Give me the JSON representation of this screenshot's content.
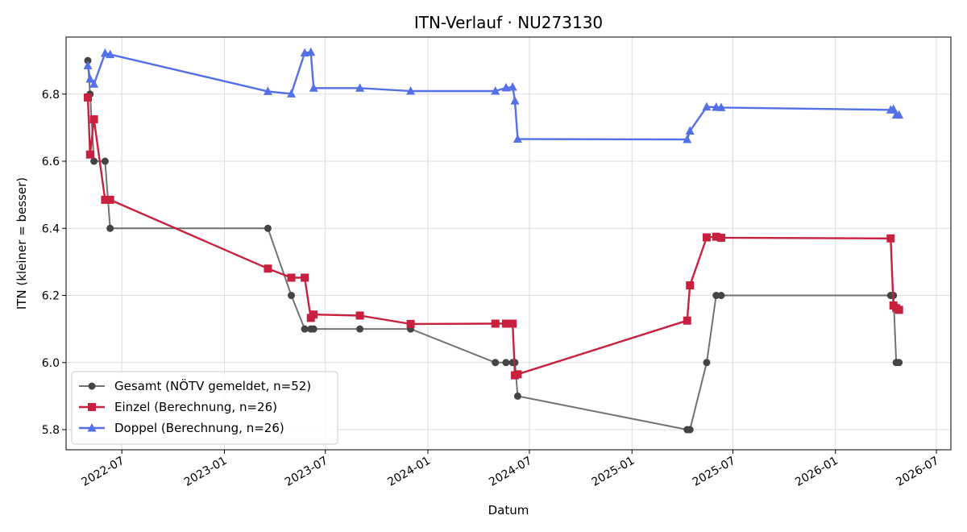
{
  "chart_data": {
    "type": "line",
    "title": "ITN-Verlauf · NU273130",
    "xlabel": "Datum",
    "ylabel": "ITN  (kleiner = besser)",
    "xlim": [
      "2022-03-23",
      "2026-07-27"
    ],
    "ylim": [
      5.74,
      6.97
    ],
    "x_ticks": [
      "2022-07",
      "2023-01",
      "2023-07",
      "2024-01",
      "2024-07",
      "2025-01",
      "2025-07",
      "2026-01",
      "2026-07"
    ],
    "y_ticks": [
      5.8,
      6.0,
      6.2,
      6.4,
      6.6,
      6.8
    ],
    "grid": true,
    "legend_position": "lower-left",
    "series": [
      {
        "name": "Gesamt (NÖTV gemeldet, n=52)",
        "color": "#444444",
        "marker": "circle",
        "points": [
          [
            "2022-05-01",
            6.9
          ],
          [
            "2022-05-05",
            6.8
          ],
          [
            "2022-05-12",
            6.6
          ],
          [
            "2022-06-01",
            6.6
          ],
          [
            "2022-06-10",
            6.4
          ],
          [
            "2023-03-20",
            6.4
          ],
          [
            "2023-05-01",
            6.2
          ],
          [
            "2023-05-25",
            6.1
          ],
          [
            "2023-06-05",
            6.1
          ],
          [
            "2023-06-10",
            6.1
          ],
          [
            "2023-09-01",
            6.1
          ],
          [
            "2023-12-01",
            6.1
          ],
          [
            "2024-05-01",
            6.0
          ],
          [
            "2024-05-20",
            6.0
          ],
          [
            "2024-06-01",
            6.0
          ],
          [
            "2024-06-05",
            6.0
          ],
          [
            "2024-06-10",
            5.9
          ],
          [
            "2025-04-10",
            5.8
          ],
          [
            "2025-04-15",
            5.8
          ],
          [
            "2025-05-15",
            6.0
          ],
          [
            "2025-06-01",
            6.2
          ],
          [
            "2025-06-10",
            6.2
          ],
          [
            "2026-04-10",
            6.2
          ],
          [
            "2026-04-15",
            6.2
          ],
          [
            "2026-04-20",
            6.0
          ],
          [
            "2026-04-25",
            6.0
          ]
        ]
      },
      {
        "name": "Einzel (Berechnung, n=26)",
        "color": "#c8203f",
        "marker": "square",
        "points": [
          [
            "2022-05-01",
            6.79
          ],
          [
            "2022-05-05",
            6.62
          ],
          [
            "2022-05-12",
            6.725
          ],
          [
            "2022-06-01",
            6.485
          ],
          [
            "2022-06-10",
            6.485
          ],
          [
            "2023-03-20",
            6.28
          ],
          [
            "2023-05-01",
            6.253
          ],
          [
            "2023-05-25",
            6.253
          ],
          [
            "2023-06-05",
            6.133
          ],
          [
            "2023-06-10",
            6.143
          ],
          [
            "2023-09-01",
            6.14
          ],
          [
            "2023-12-01",
            6.115
          ],
          [
            "2024-05-01",
            6.116
          ],
          [
            "2024-05-20",
            6.116
          ],
          [
            "2024-06-01",
            6.116
          ],
          [
            "2024-06-05",
            5.962
          ],
          [
            "2024-06-10",
            5.965
          ],
          [
            "2025-04-10",
            6.125
          ],
          [
            "2025-04-15",
            6.23
          ],
          [
            "2025-05-15",
            6.373
          ],
          [
            "2025-06-01",
            6.375
          ],
          [
            "2025-06-10",
            6.372
          ],
          [
            "2026-04-10",
            6.37
          ],
          [
            "2026-04-15",
            6.17
          ],
          [
            "2026-04-20",
            6.162
          ],
          [
            "2026-04-25",
            6.157
          ]
        ]
      },
      {
        "name": "Doppel (Berechnung, n=26)",
        "color": "#5470e6",
        "marker": "triangle",
        "points": [
          [
            "2022-05-01",
            6.885
          ],
          [
            "2022-05-05",
            6.845
          ],
          [
            "2022-05-12",
            6.83
          ],
          [
            "2022-06-01",
            6.922
          ],
          [
            "2022-06-10",
            6.918
          ],
          [
            "2023-03-20",
            6.808
          ],
          [
            "2023-05-01",
            6.801
          ],
          [
            "2023-05-25",
            6.923
          ],
          [
            "2023-06-05",
            6.925
          ],
          [
            "2023-06-10",
            6.818
          ],
          [
            "2023-09-01",
            6.818
          ],
          [
            "2023-12-01",
            6.809
          ],
          [
            "2024-05-01",
            6.809
          ],
          [
            "2024-05-20",
            6.819
          ],
          [
            "2024-06-01",
            6.821
          ],
          [
            "2024-06-05",
            6.78
          ],
          [
            "2024-06-10",
            6.666
          ],
          [
            "2025-04-10",
            6.665
          ],
          [
            "2025-04-15",
            6.69
          ],
          [
            "2025-05-15",
            6.762
          ],
          [
            "2025-06-01",
            6.761
          ],
          [
            "2025-06-10",
            6.76
          ],
          [
            "2026-04-10",
            6.753
          ],
          [
            "2026-04-15",
            6.755
          ],
          [
            "2026-04-20",
            6.738
          ],
          [
            "2026-04-25",
            6.738
          ]
        ]
      }
    ]
  }
}
